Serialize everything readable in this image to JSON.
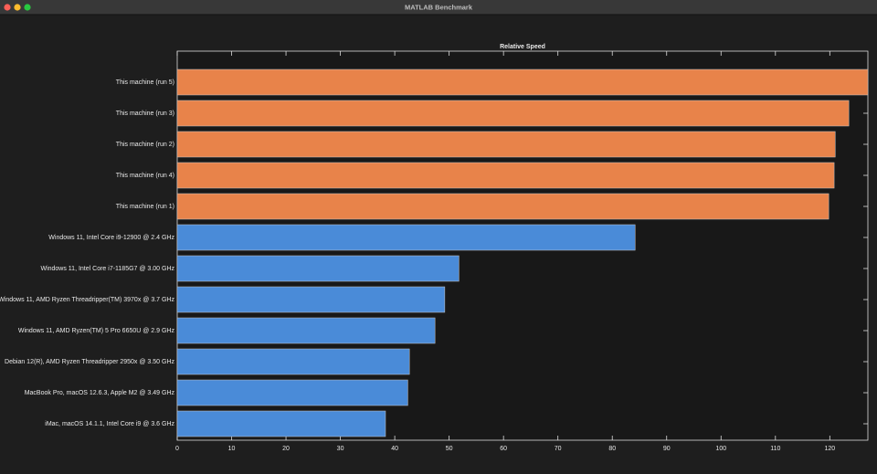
{
  "window": {
    "title": "MATLAB Benchmark"
  },
  "chart_data": {
    "type": "barh",
    "title": "Relative Speed",
    "categories": [
      "This machine (run 5)",
      "This machine (run 3)",
      "This machine (run 2)",
      "This machine (run 4)",
      "This machine (run 1)",
      "Windows 11, Intel Core i9-12900 @ 2.4 GHz",
      "Windows 11, Intel Core i7-1185G7 @ 3.00 GHz",
      "Windows 11, AMD Ryzen Threadripper(TM) 3970x @ 3.7 GHz",
      "Windows 11, AMD Ryzen(TM) 5 Pro 6650U @ 2.9 GHz",
      "Debian 12(R), AMD Ryzen Threadripper 2950x @ 3.50 GHz",
      "MacBook Pro, macOS 12.6.3, Apple M2 @ 3.49 GHz",
      "iMac, macOS 14.1.1, Intel Core i9 @ 3.6 GHz"
    ],
    "values": [
      127,
      123.5,
      121,
      120.8,
      119.8,
      84.2,
      51.8,
      49.2,
      47.4,
      42.7,
      42.4,
      38.3
    ],
    "colors": [
      "#e8834a",
      "#e8834a",
      "#e8834a",
      "#e8834a",
      "#e8834a",
      "#4a8bd8",
      "#4a8bd8",
      "#4a8bd8",
      "#4a8bd8",
      "#4a8bd8",
      "#4a8bd8",
      "#4a8bd8"
    ],
    "xlim": [
      0,
      127
    ],
    "xticks": [
      0,
      10,
      20,
      30,
      40,
      50,
      60,
      70,
      80,
      90,
      100,
      110,
      120
    ]
  }
}
